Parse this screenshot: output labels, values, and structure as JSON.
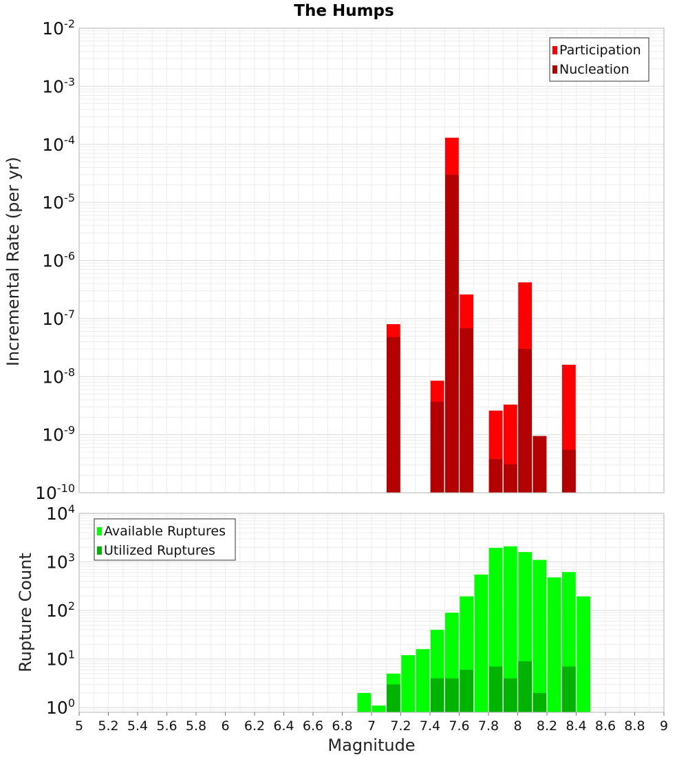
{
  "chart_data": [
    {
      "type": "bar",
      "title": "The Humps",
      "xlabel": "Magnitude",
      "ylabel": "Incremental Rate (per yr)",
      "y_scale": "log",
      "xlim": [
        5,
        9
      ],
      "ylim": [
        1e-10,
        0.01
      ],
      "y_ticks": [
        {
          "base": "10",
          "exp": "-2",
          "value": 0.01
        },
        {
          "base": "10",
          "exp": "-3",
          "value": 0.001
        },
        {
          "base": "10",
          "exp": "-4",
          "value": 0.0001
        },
        {
          "base": "10",
          "exp": "-5",
          "value": 1e-05
        },
        {
          "base": "10",
          "exp": "-6",
          "value": 1e-06
        },
        {
          "base": "10",
          "exp": "-7",
          "value": 1e-07
        },
        {
          "base": "10",
          "exp": "-8",
          "value": 1e-08
        },
        {
          "base": "10",
          "exp": "-9",
          "value": 1e-09
        },
        {
          "base": "10",
          "exp": "-10",
          "value": 1e-10
        }
      ],
      "grid": true,
      "legend_position": "top-right",
      "series": [
        {
          "name": "Participation",
          "color": "#ff0000",
          "x": [
            7.15,
            7.45,
            7.55,
            7.65,
            7.85,
            7.95,
            8.05,
            8.15,
            8.35
          ],
          "values": [
            8e-08,
            8.5e-09,
            0.00013,
            2.6e-07,
            2.6e-09,
            3.3e-09,
            4.2e-07,
            9.5e-10,
            1.6e-08
          ]
        },
        {
          "name": "Nucleation",
          "color": "#b30000",
          "x": [
            7.15,
            7.45,
            7.55,
            7.65,
            7.85,
            7.95,
            8.05,
            8.15,
            8.35
          ],
          "values": [
            4.8e-08,
            3.7e-09,
            3e-05,
            6.8e-08,
            3.8e-10,
            3.1e-10,
            3e-08,
            9.5e-10,
            5.5e-10
          ]
        }
      ]
    },
    {
      "type": "bar",
      "title": "",
      "xlabel": "Magnitude",
      "ylabel": "Rupture Count",
      "y_scale": "log",
      "xlim": [
        5,
        9
      ],
      "ylim": [
        0.8,
        10000
      ],
      "y_ticks": [
        {
          "base": "10",
          "exp": "4",
          "value": 10000
        },
        {
          "base": "10",
          "exp": "3",
          "value": 1000
        },
        {
          "base": "10",
          "exp": "2",
          "value": 100
        },
        {
          "base": "10",
          "exp": "1",
          "value": 10
        },
        {
          "base": "10",
          "exp": "0",
          "value": 1
        }
      ],
      "x_ticks": [
        "5",
        "5.2",
        "5.4",
        "5.6",
        "5.8",
        "6",
        "6.2",
        "6.4",
        "6.6",
        "6.8",
        "7",
        "7.2",
        "7.4",
        "7.6",
        "7.8",
        "8",
        "8.2",
        "8.4",
        "8.6",
        "8.8",
        "9"
      ],
      "grid": true,
      "legend_position": "top-left",
      "series": [
        {
          "name": "Available Ruptures",
          "color": "#00ff00",
          "x": [
            6.95,
            7.05,
            7.15,
            7.25,
            7.35,
            7.45,
            7.55,
            7.65,
            7.75,
            7.85,
            7.95,
            8.05,
            8.15,
            8.25,
            8.35,
            8.45
          ],
          "values": [
            2,
            1.1,
            5,
            12,
            16,
            40,
            90,
            195,
            550,
            1950,
            2100,
            1600,
            1100,
            480,
            620,
            195
          ]
        },
        {
          "name": "Utilized Ruptures",
          "color": "#00b300",
          "x": [
            7.15,
            7.45,
            7.55,
            7.65,
            7.85,
            7.95,
            8.05,
            8.15,
            8.35
          ],
          "values": [
            3,
            4,
            4,
            6,
            7,
            4,
            9,
            2,
            7
          ]
        }
      ]
    }
  ]
}
